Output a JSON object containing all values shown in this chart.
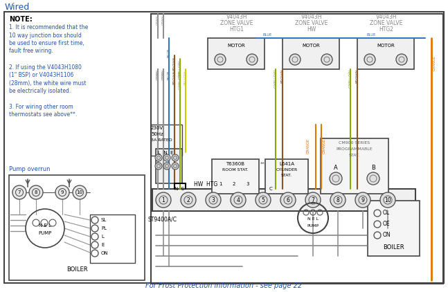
{
  "title": "Wired",
  "bg_color": "#ffffff",
  "note_lines": [
    "NOTE:",
    "1. It is recommended that the",
    "10 way junction box should",
    "be used to ensure first time,",
    "fault free wiring.",
    " ",
    "2. If using the V4043H1080",
    "(1\" BSP) or V4043H1106",
    "(28mm), the white wire must",
    "be electrically isolated.",
    " ",
    "3. For wiring other room",
    "thermostats see above**."
  ],
  "frost_text": "For Frost Protection information - see page 22",
  "pump_overrun_text": "Pump overrun",
  "wire_colors": {
    "grey": "#909090",
    "blue": "#3377bb",
    "brown": "#885522",
    "orange": "#dd7700",
    "gyellow": "#88aa00",
    "black": "#111111",
    "white": "#ffffff"
  },
  "valve_labels": [
    [
      "V4043H",
      "ZONE VALVE",
      "HTG1"
    ],
    [
      "V4043H",
      "ZONE VALVE",
      "HW"
    ],
    [
      "V4043H",
      "ZONE VALVE",
      "HTG2"
    ]
  ],
  "title_color": "#2255aa",
  "frost_color": "#2255aa",
  "note_color": "#2255aa",
  "pump_overrun_color": "#2255aa",
  "text_color": "#000000",
  "border_color": "#333333",
  "light_gray": "#f2f2f2",
  "medium_gray": "#cccccc"
}
